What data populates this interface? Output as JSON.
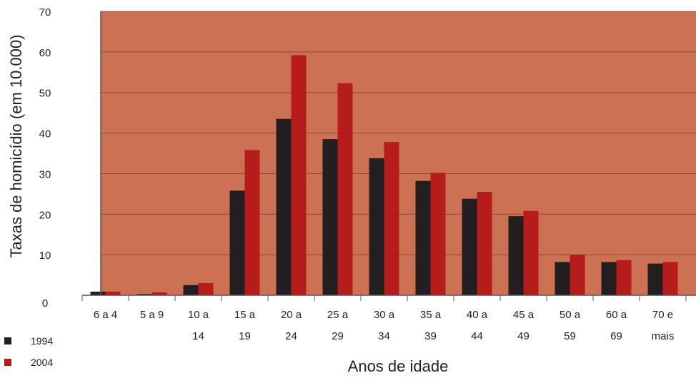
{
  "chart_data": {
    "type": "bar",
    "title": "",
    "xlabel": "Anos de idade",
    "ylabel": "Taxas de homicídio (em 10.000)",
    "ylim": [
      0,
      70
    ],
    "yticks": [
      0,
      10,
      20,
      30,
      40,
      50,
      60,
      70
    ],
    "categories": [
      [
        "6 a 4"
      ],
      [
        "5 a 9"
      ],
      [
        "10 a",
        "14"
      ],
      [
        "15 a",
        "19"
      ],
      [
        "20 a",
        "24"
      ],
      [
        "25 a",
        "29"
      ],
      [
        "30 a",
        "34"
      ],
      [
        "35 a",
        "39"
      ],
      [
        "40 a",
        "44"
      ],
      [
        "45 a",
        "49"
      ],
      [
        "50 a",
        "59"
      ],
      [
        "60 a",
        "69"
      ],
      [
        "70 e",
        "mais"
      ]
    ],
    "series": [
      {
        "name": "1994",
        "color": "#231f20",
        "values": [
          0.9,
          0.3,
          2.5,
          25.8,
          43.5,
          38.5,
          33.8,
          28.2,
          23.8,
          19.5,
          8.2,
          8.2,
          7.8
        ]
      },
      {
        "name": "2004",
        "color": "#b71c1c",
        "values": [
          0.9,
          0.7,
          3.0,
          35.8,
          59.2,
          52.3,
          37.8,
          30.2,
          25.5,
          20.8,
          10.0,
          8.7,
          8.2
        ]
      }
    ],
    "grid": true,
    "legend_position": "bottom-left",
    "plot_background": "#cd7155"
  }
}
